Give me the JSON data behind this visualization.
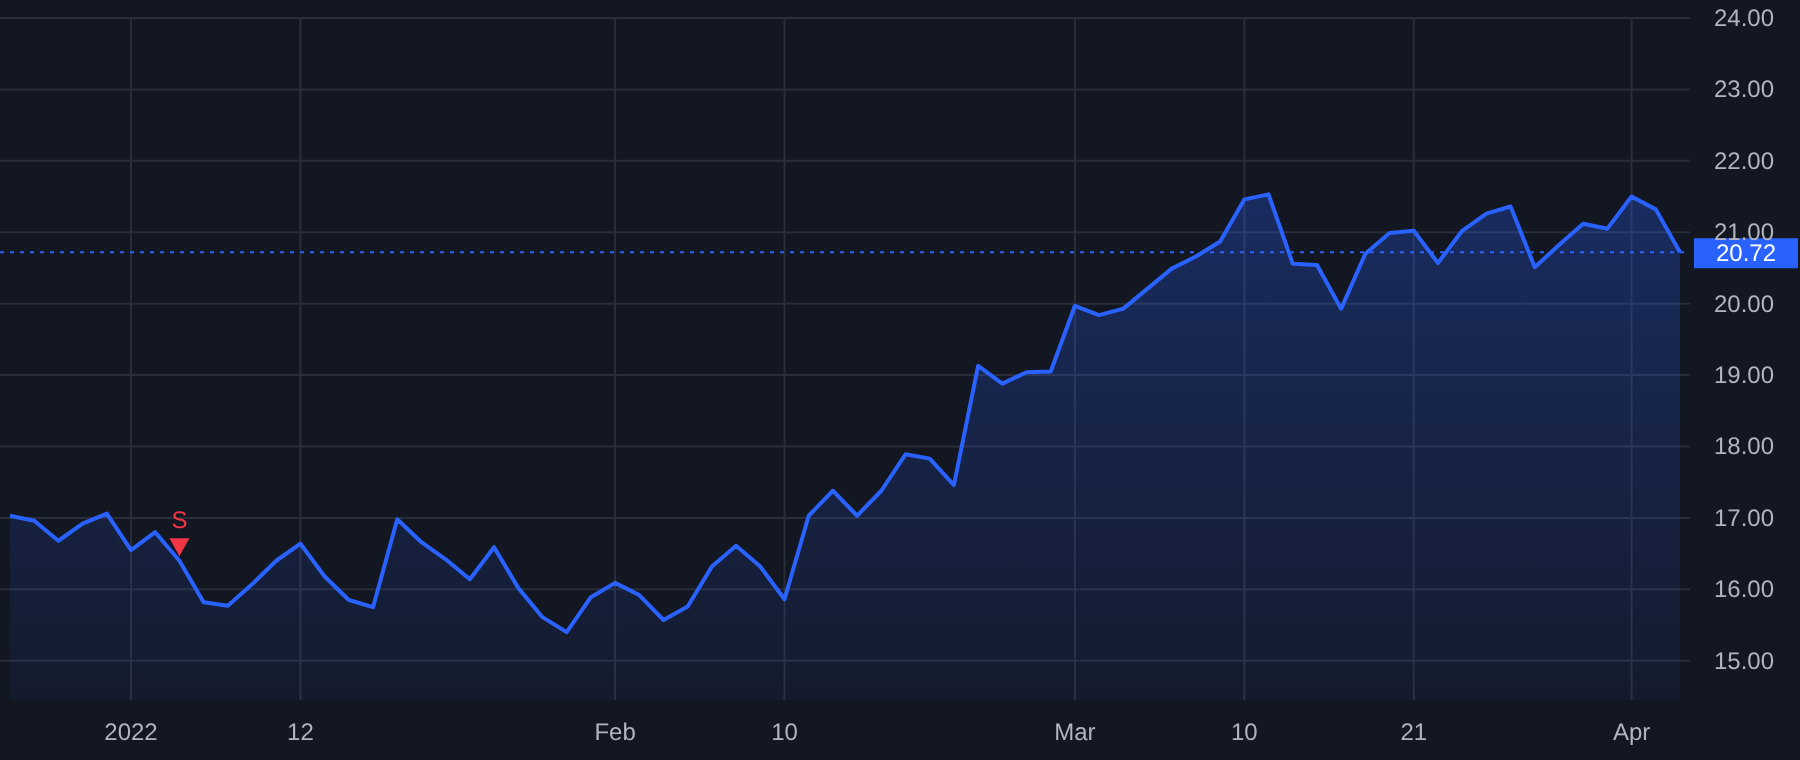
{
  "chart_data": {
    "type": "area",
    "categories": [
      null,
      null,
      null,
      null,
      null,
      "2022",
      null,
      null,
      null,
      null,
      null,
      null,
      "12",
      null,
      null,
      null,
      null,
      null,
      null,
      null,
      null,
      null,
      null,
      null,
      null,
      "Feb",
      null,
      null,
      null,
      null,
      null,
      null,
      "10",
      null,
      null,
      null,
      null,
      null,
      null,
      null,
      null,
      null,
      null,
      null,
      "Mar",
      null,
      null,
      null,
      null,
      null,
      null,
      "10",
      null,
      null,
      null,
      null,
      null,
      null,
      "21",
      null,
      null,
      null,
      null,
      null,
      null,
      null,
      null,
      "Apr",
      null,
      null
    ],
    "series": [
      {
        "color": "#2962ff",
        "values": [
          17.03,
          16.96,
          16.68,
          16.92,
          17.06,
          16.55,
          16.8,
          16.4,
          15.82,
          15.77,
          16.07,
          16.4,
          16.64,
          16.18,
          15.85,
          15.75,
          16.98,
          16.66,
          16.42,
          16.14,
          16.59,
          16.02,
          15.61,
          15.4,
          15.89,
          16.09,
          15.92,
          15.57,
          15.76,
          16.32,
          16.61,
          16.32,
          15.86,
          17.03,
          17.38,
          17.03,
          17.38,
          17.89,
          17.83,
          17.46,
          19.13,
          18.88,
          19.04,
          19.05,
          19.97,
          19.84,
          19.93,
          20.21,
          20.49,
          20.66,
          20.87,
          21.46,
          21.53,
          20.56,
          20.54,
          19.93,
          20.7,
          20.99,
          21.02,
          20.57,
          21.02,
          21.26,
          21.36,
          20.51,
          20.82,
          21.12,
          21.05,
          21.5,
          21.32,
          20.72
        ]
      },
      {
        "type": "scatter",
        "name": "S",
        "color": "#f23645",
        "marker": "triangle",
        "values": [
          null,
          null,
          null,
          null,
          null,
          null,
          null,
          16.63,
          null,
          null,
          null,
          null,
          null,
          null,
          null,
          null,
          null,
          null,
          null,
          null,
          null,
          null,
          null,
          null,
          null,
          null,
          null,
          null,
          null,
          null,
          null,
          null,
          null,
          null,
          null,
          null,
          null,
          null,
          null,
          null,
          null,
          null,
          null,
          null,
          null,
          null,
          null,
          null,
          null,
          null,
          null,
          null,
          null,
          null,
          null,
          null,
          null,
          null,
          null,
          null,
          null,
          null,
          null,
          null,
          null,
          null,
          null,
          null,
          null,
          null
        ]
      }
    ],
    "ylim": [
      14.45,
      24
    ],
    "yticks": [
      {
        "value": 15,
        "label": "15.00"
      },
      {
        "value": 16,
        "label": "16.00"
      },
      {
        "value": 17,
        "label": "17.00"
      },
      {
        "value": 18,
        "label": "18.00"
      },
      {
        "value": 19,
        "label": "19.00"
      },
      {
        "value": 20,
        "label": "20.00"
      },
      {
        "value": 21,
        "label": "21.00"
      },
      {
        "value": 22,
        "label": "22.00"
      },
      {
        "value": 23,
        "label": "23.00"
      },
      {
        "value": 24,
        "label": "24.00"
      }
    ],
    "grid": true,
    "legend": false,
    "ref_lines": [
      {
        "axis": "y",
        "value": 20.72,
        "label": "20.72",
        "color": "#2962ff",
        "line_style": "dotted"
      }
    ]
  }
}
